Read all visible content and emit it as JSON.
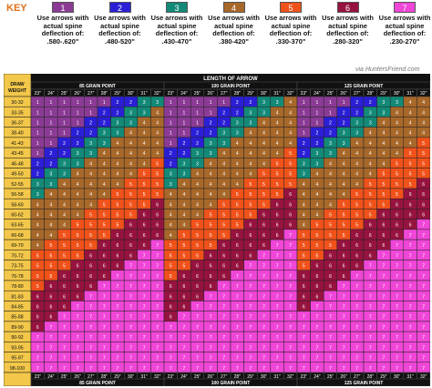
{
  "key": {
    "title": "KEY",
    "groups": [
      {
        "num": "1",
        "color": "#8b3b95",
        "line1": "Use arrows with",
        "line2": "actual spine",
        "line3": "deflection of:",
        "range": ".580-.620\""
      },
      {
        "num": "2",
        "color": "#2a1fd6",
        "line1": "Use arrows with",
        "line2": "actual spine",
        "line3": "deflection of:",
        "range": ".480-520\""
      },
      {
        "num": "3",
        "color": "#138a78",
        "line1": "Use arrows with",
        "line2": "actual spine",
        "line3": "deflection of:",
        "range": ".430-470\""
      },
      {
        "num": "4",
        "color": "#a8682a",
        "line1": "Use arrows with",
        "line2": "actual spine",
        "line3": "deflection of:",
        "range": ".380-420\""
      },
      {
        "num": "5",
        "color": "#f0521a",
        "line1": "Use arrows with",
        "line2": "actual spine",
        "line3": "deflection of:",
        "range": ".330-370\""
      },
      {
        "num": "6",
        "color": "#97133f",
        "line1": "Use arrows with",
        "line2": "actual spine",
        "line3": "deflection of:",
        "range": ".280-320\""
      },
      {
        "num": "7",
        "color": "#f046d8",
        "line1": "Use arrows with",
        "line2": "actual spine",
        "line3": "deflection of:",
        "range": ".230-270\""
      }
    ]
  },
  "credit": {
    "via": "via",
    "site": "HuntersFriend.com"
  },
  "colors": {
    "header": "#111111",
    "headerText": "#ffffff",
    "rowLabelBg": "#f2c74a",
    "grid": "#111111"
  },
  "chart_data": {
    "type": "table",
    "title": "LENGTH OF ARROW",
    "row_header": "DRAW WEIGHT",
    "groups": [
      "85 GRAIN POINT",
      "100 GRAIN POINT",
      "125 GRAIN POINT"
    ],
    "lengths": [
      "23\"",
      "24\"",
      "25\"",
      "26\"",
      "27\"",
      "28\"",
      "29\"",
      "30\"",
      "31\"",
      "32\""
    ],
    "rows": [
      "30-32",
      "33-35",
      "36-37",
      "38-40",
      "41-43",
      "43-45",
      "46-48",
      "49-50",
      "52-55",
      "56-58",
      "58-60",
      "60-62",
      "63-65",
      "66-68",
      "69-70",
      "70-72",
      "73-75",
      "76-78",
      "78-80",
      "81-83",
      "84-85",
      "85-88",
      "89-90",
      "90-92",
      "93-95",
      "95-97",
      "98-100"
    ],
    "cells": [
      [
        [
          1,
          1,
          1,
          1,
          1,
          1,
          2,
          2,
          3,
          3
        ],
        [
          1,
          1,
          1,
          1,
          1,
          2,
          2,
          3,
          3,
          4
        ],
        [
          1,
          1,
          1,
          1,
          2,
          2,
          3,
          3,
          4,
          4
        ]
      ],
      [
        [
          1,
          1,
          1,
          1,
          1,
          2,
          2,
          3,
          3,
          4
        ],
        [
          1,
          1,
          1,
          1,
          2,
          2,
          3,
          3,
          4,
          4
        ],
        [
          1,
          1,
          1,
          2,
          2,
          3,
          3,
          4,
          4,
          4
        ]
      ],
      [
        [
          1,
          1,
          1,
          1,
          2,
          2,
          3,
          3,
          4,
          4
        ],
        [
          1,
          1,
          1,
          2,
          2,
          3,
          3,
          4,
          4,
          4
        ],
        [
          1,
          1,
          2,
          2,
          3,
          3,
          4,
          4,
          4,
          4
        ]
      ],
      [
        [
          1,
          1,
          1,
          2,
          2,
          3,
          3,
          4,
          4,
          4
        ],
        [
          1,
          1,
          2,
          2,
          3,
          3,
          4,
          4,
          4,
          4
        ],
        [
          1,
          2,
          2,
          3,
          3,
          4,
          4,
          4,
          4,
          4
        ]
      ],
      [
        [
          1,
          1,
          2,
          2,
          3,
          3,
          4,
          4,
          4,
          4
        ],
        [
          1,
          2,
          2,
          3,
          3,
          4,
          4,
          4,
          4,
          4
        ],
        [
          2,
          2,
          3,
          3,
          4,
          4,
          4,
          4,
          4,
          5
        ]
      ],
      [
        [
          1,
          2,
          2,
          3,
          3,
          4,
          4,
          4,
          4,
          4
        ],
        [
          2,
          2,
          3,
          3,
          4,
          4,
          4,
          4,
          4,
          5
        ],
        [
          2,
          3,
          3,
          4,
          4,
          4,
          4,
          4,
          5,
          5
        ]
      ],
      [
        [
          2,
          2,
          3,
          3,
          4,
          4,
          4,
          4,
          4,
          5
        ],
        [
          2,
          3,
          3,
          4,
          4,
          4,
          4,
          4,
          5,
          5
        ],
        [
          3,
          3,
          4,
          4,
          4,
          4,
          4,
          5,
          5,
          5
        ]
      ],
      [
        [
          2,
          3,
          3,
          4,
          4,
          4,
          4,
          4,
          5,
          5
        ],
        [
          3,
          3,
          4,
          4,
          4,
          4,
          4,
          5,
          5,
          5
        ],
        [
          3,
          4,
          4,
          4,
          4,
          4,
          5,
          5,
          5,
          5
        ]
      ],
      [
        [
          3,
          3,
          4,
          4,
          4,
          4,
          4,
          5,
          5,
          5
        ],
        [
          3,
          4,
          4,
          4,
          4,
          4,
          5,
          5,
          5,
          5
        ],
        [
          4,
          4,
          4,
          4,
          4,
          5,
          5,
          5,
          5,
          6
        ]
      ],
      [
        [
          3,
          4,
          4,
          4,
          4,
          4,
          5,
          5,
          5,
          5
        ],
        [
          4,
          4,
          4,
          4,
          4,
          5,
          5,
          5,
          5,
          6
        ],
        [
          4,
          4,
          4,
          4,
          5,
          5,
          5,
          5,
          6,
          6
        ]
      ],
      [
        [
          4,
          4,
          4,
          4,
          4,
          5,
          5,
          5,
          5,
          6
        ],
        [
          4,
          4,
          4,
          4,
          5,
          5,
          5,
          5,
          6,
          6
        ],
        [
          4,
          4,
          4,
          5,
          5,
          5,
          5,
          6,
          6,
          6
        ]
      ],
      [
        [
          4,
          4,
          4,
          4,
          5,
          5,
          5,
          5,
          6,
          6
        ],
        [
          4,
          4,
          4,
          5,
          5,
          5,
          5,
          6,
          6,
          6
        ],
        [
          4,
          4,
          5,
          5,
          5,
          5,
          6,
          6,
          6,
          6
        ]
      ],
      [
        [
          4,
          4,
          4,
          5,
          5,
          5,
          5,
          6,
          6,
          6
        ],
        [
          4,
          4,
          5,
          5,
          5,
          5,
          6,
          6,
          6,
          6
        ],
        [
          4,
          5,
          5,
          5,
          5,
          6,
          6,
          6,
          6,
          7
        ]
      ],
      [
        [
          4,
          4,
          5,
          5,
          5,
          5,
          6,
          6,
          6,
          6
        ],
        [
          4,
          5,
          5,
          5,
          5,
          6,
          6,
          6,
          6,
          7
        ],
        [
          5,
          5,
          5,
          5,
          6,
          6,
          6,
          6,
          7,
          7
        ]
      ],
      [
        [
          4,
          5,
          5,
          5,
          5,
          6,
          6,
          6,
          6,
          7
        ],
        [
          5,
          5,
          5,
          5,
          6,
          6,
          6,
          6,
          7,
          7
        ],
        [
          5,
          5,
          5,
          6,
          6,
          6,
          6,
          7,
          7,
          7
        ]
      ],
      [
        [
          5,
          5,
          5,
          5,
          6,
          6,
          6,
          6,
          7,
          7
        ],
        [
          5,
          5,
          5,
          6,
          6,
          6,
          6,
          7,
          7,
          7
        ],
        [
          5,
          5,
          6,
          6,
          6,
          6,
          7,
          7,
          7,
          7
        ]
      ],
      [
        [
          5,
          5,
          5,
          6,
          6,
          6,
          6,
          7,
          7,
          7
        ],
        [
          5,
          5,
          6,
          6,
          6,
          6,
          7,
          7,
          7,
          7
        ],
        [
          5,
          6,
          6,
          6,
          6,
          7,
          7,
          7,
          7,
          7
        ]
      ],
      [
        [
          5,
          5,
          6,
          6,
          6,
          6,
          7,
          7,
          7,
          7
        ],
        [
          5,
          6,
          6,
          6,
          6,
          7,
          7,
          7,
          7,
          7
        ],
        [
          6,
          6,
          6,
          6,
          7,
          7,
          7,
          7,
          7,
          7
        ]
      ],
      [
        [
          5,
          6,
          6,
          6,
          6,
          7,
          7,
          7,
          7,
          7
        ],
        [
          6,
          6,
          6,
          6,
          7,
          7,
          7,
          7,
          7,
          7
        ],
        [
          6,
          6,
          6,
          7,
          7,
          7,
          7,
          7,
          7,
          7
        ]
      ],
      [
        [
          6,
          6,
          6,
          6,
          7,
          7,
          7,
          7,
          7,
          7
        ],
        [
          6,
          6,
          6,
          7,
          7,
          7,
          7,
          7,
          7,
          7
        ],
        [
          6,
          6,
          7,
          7,
          7,
          7,
          7,
          7,
          7,
          7
        ]
      ],
      [
        [
          6,
          6,
          6,
          7,
          7,
          7,
          7,
          7,
          7,
          7
        ],
        [
          6,
          6,
          7,
          7,
          7,
          7,
          7,
          7,
          7,
          7
        ],
        [
          6,
          7,
          7,
          7,
          7,
          7,
          7,
          7,
          7,
          7
        ]
      ],
      [
        [
          6,
          6,
          7,
          7,
          7,
          7,
          7,
          7,
          7,
          7
        ],
        [
          6,
          7,
          7,
          7,
          7,
          7,
          7,
          7,
          7,
          7
        ],
        [
          7,
          7,
          7,
          7,
          7,
          7,
          7,
          7,
          7,
          7
        ]
      ],
      [
        [
          6,
          7,
          7,
          7,
          7,
          7,
          7,
          7,
          7,
          7
        ],
        [
          7,
          7,
          7,
          7,
          7,
          7,
          7,
          7,
          7,
          7
        ],
        [
          7,
          7,
          7,
          7,
          7,
          7,
          7,
          7,
          7,
          7
        ]
      ],
      [
        [
          7,
          7,
          7,
          7,
          7,
          7,
          7,
          7,
          7,
          7
        ],
        [
          7,
          7,
          7,
          7,
          7,
          7,
          7,
          7,
          7,
          7
        ],
        [
          7,
          7,
          7,
          7,
          7,
          7,
          7,
          7,
          7,
          7
        ]
      ],
      [
        [
          7,
          7,
          7,
          7,
          7,
          7,
          7,
          7,
          7,
          7
        ],
        [
          7,
          7,
          7,
          7,
          7,
          7,
          7,
          7,
          7,
          7
        ],
        [
          7,
          7,
          7,
          7,
          7,
          7,
          7,
          7,
          7,
          7
        ]
      ],
      [
        [
          7,
          7,
          7,
          7,
          7,
          7,
          7,
          7,
          7,
          7
        ],
        [
          7,
          7,
          7,
          7,
          7,
          7,
          7,
          7,
          7,
          7
        ],
        [
          7,
          7,
          7,
          7,
          7,
          7,
          7,
          7,
          7,
          7
        ]
      ],
      [
        [
          7,
          7,
          7,
          7,
          7,
          7,
          7,
          7,
          7,
          7
        ],
        [
          7,
          7,
          7,
          7,
          7,
          7,
          7,
          7,
          7,
          7
        ],
        [
          7,
          7,
          7,
          7,
          7,
          7,
          7,
          7,
          7,
          7
        ]
      ]
    ]
  }
}
